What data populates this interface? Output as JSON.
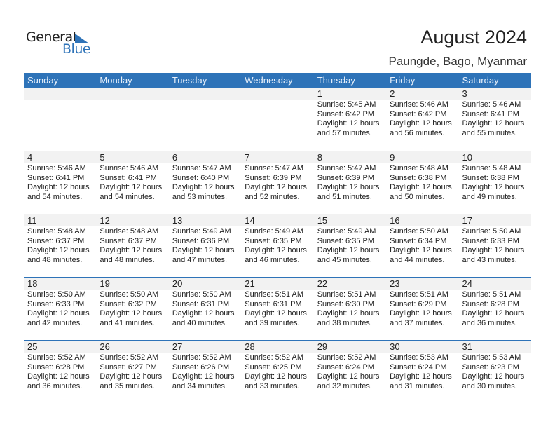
{
  "logo": {
    "word1": "General",
    "word2": "Blue"
  },
  "header": {
    "title": "August 2024",
    "location": "Paungde, Bago, Myanmar"
  },
  "weekdays": [
    "Sunday",
    "Monday",
    "Tuesday",
    "Wednesday",
    "Thursday",
    "Friday",
    "Saturday"
  ],
  "colors": {
    "accent": "#2e73b8",
    "band": "#f2f2f2"
  },
  "weeks": [
    [
      null,
      null,
      null,
      null,
      {
        "day": "1",
        "sunrise": "Sunrise: 5:45 AM",
        "sunset": "Sunset: 6:42 PM",
        "daylight1": "Daylight: 12 hours",
        "daylight2": "and 57 minutes."
      },
      {
        "day": "2",
        "sunrise": "Sunrise: 5:46 AM",
        "sunset": "Sunset: 6:42 PM",
        "daylight1": "Daylight: 12 hours",
        "daylight2": "and 56 minutes."
      },
      {
        "day": "3",
        "sunrise": "Sunrise: 5:46 AM",
        "sunset": "Sunset: 6:41 PM",
        "daylight1": "Daylight: 12 hours",
        "daylight2": "and 55 minutes."
      }
    ],
    [
      {
        "day": "4",
        "sunrise": "Sunrise: 5:46 AM",
        "sunset": "Sunset: 6:41 PM",
        "daylight1": "Daylight: 12 hours",
        "daylight2": "and 54 minutes."
      },
      {
        "day": "5",
        "sunrise": "Sunrise: 5:46 AM",
        "sunset": "Sunset: 6:41 PM",
        "daylight1": "Daylight: 12 hours",
        "daylight2": "and 54 minutes."
      },
      {
        "day": "6",
        "sunrise": "Sunrise: 5:47 AM",
        "sunset": "Sunset: 6:40 PM",
        "daylight1": "Daylight: 12 hours",
        "daylight2": "and 53 minutes."
      },
      {
        "day": "7",
        "sunrise": "Sunrise: 5:47 AM",
        "sunset": "Sunset: 6:39 PM",
        "daylight1": "Daylight: 12 hours",
        "daylight2": "and 52 minutes."
      },
      {
        "day": "8",
        "sunrise": "Sunrise: 5:47 AM",
        "sunset": "Sunset: 6:39 PM",
        "daylight1": "Daylight: 12 hours",
        "daylight2": "and 51 minutes."
      },
      {
        "day": "9",
        "sunrise": "Sunrise: 5:48 AM",
        "sunset": "Sunset: 6:38 PM",
        "daylight1": "Daylight: 12 hours",
        "daylight2": "and 50 minutes."
      },
      {
        "day": "10",
        "sunrise": "Sunrise: 5:48 AM",
        "sunset": "Sunset: 6:38 PM",
        "daylight1": "Daylight: 12 hours",
        "daylight2": "and 49 minutes."
      }
    ],
    [
      {
        "day": "11",
        "sunrise": "Sunrise: 5:48 AM",
        "sunset": "Sunset: 6:37 PM",
        "daylight1": "Daylight: 12 hours",
        "daylight2": "and 48 minutes."
      },
      {
        "day": "12",
        "sunrise": "Sunrise: 5:48 AM",
        "sunset": "Sunset: 6:37 PM",
        "daylight1": "Daylight: 12 hours",
        "daylight2": "and 48 minutes."
      },
      {
        "day": "13",
        "sunrise": "Sunrise: 5:49 AM",
        "sunset": "Sunset: 6:36 PM",
        "daylight1": "Daylight: 12 hours",
        "daylight2": "and 47 minutes."
      },
      {
        "day": "14",
        "sunrise": "Sunrise: 5:49 AM",
        "sunset": "Sunset: 6:35 PM",
        "daylight1": "Daylight: 12 hours",
        "daylight2": "and 46 minutes."
      },
      {
        "day": "15",
        "sunrise": "Sunrise: 5:49 AM",
        "sunset": "Sunset: 6:35 PM",
        "daylight1": "Daylight: 12 hours",
        "daylight2": "and 45 minutes."
      },
      {
        "day": "16",
        "sunrise": "Sunrise: 5:50 AM",
        "sunset": "Sunset: 6:34 PM",
        "daylight1": "Daylight: 12 hours",
        "daylight2": "and 44 minutes."
      },
      {
        "day": "17",
        "sunrise": "Sunrise: 5:50 AM",
        "sunset": "Sunset: 6:33 PM",
        "daylight1": "Daylight: 12 hours",
        "daylight2": "and 43 minutes."
      }
    ],
    [
      {
        "day": "18",
        "sunrise": "Sunrise: 5:50 AM",
        "sunset": "Sunset: 6:33 PM",
        "daylight1": "Daylight: 12 hours",
        "daylight2": "and 42 minutes."
      },
      {
        "day": "19",
        "sunrise": "Sunrise: 5:50 AM",
        "sunset": "Sunset: 6:32 PM",
        "daylight1": "Daylight: 12 hours",
        "daylight2": "and 41 minutes."
      },
      {
        "day": "20",
        "sunrise": "Sunrise: 5:50 AM",
        "sunset": "Sunset: 6:31 PM",
        "daylight1": "Daylight: 12 hours",
        "daylight2": "and 40 minutes."
      },
      {
        "day": "21",
        "sunrise": "Sunrise: 5:51 AM",
        "sunset": "Sunset: 6:31 PM",
        "daylight1": "Daylight: 12 hours",
        "daylight2": "and 39 minutes."
      },
      {
        "day": "22",
        "sunrise": "Sunrise: 5:51 AM",
        "sunset": "Sunset: 6:30 PM",
        "daylight1": "Daylight: 12 hours",
        "daylight2": "and 38 minutes."
      },
      {
        "day": "23",
        "sunrise": "Sunrise: 5:51 AM",
        "sunset": "Sunset: 6:29 PM",
        "daylight1": "Daylight: 12 hours",
        "daylight2": "and 37 minutes."
      },
      {
        "day": "24",
        "sunrise": "Sunrise: 5:51 AM",
        "sunset": "Sunset: 6:28 PM",
        "daylight1": "Daylight: 12 hours",
        "daylight2": "and 36 minutes."
      }
    ],
    [
      {
        "day": "25",
        "sunrise": "Sunrise: 5:52 AM",
        "sunset": "Sunset: 6:28 PM",
        "daylight1": "Daylight: 12 hours",
        "daylight2": "and 36 minutes."
      },
      {
        "day": "26",
        "sunrise": "Sunrise: 5:52 AM",
        "sunset": "Sunset: 6:27 PM",
        "daylight1": "Daylight: 12 hours",
        "daylight2": "and 35 minutes."
      },
      {
        "day": "27",
        "sunrise": "Sunrise: 5:52 AM",
        "sunset": "Sunset: 6:26 PM",
        "daylight1": "Daylight: 12 hours",
        "daylight2": "and 34 minutes."
      },
      {
        "day": "28",
        "sunrise": "Sunrise: 5:52 AM",
        "sunset": "Sunset: 6:25 PM",
        "daylight1": "Daylight: 12 hours",
        "daylight2": "and 33 minutes."
      },
      {
        "day": "29",
        "sunrise": "Sunrise: 5:52 AM",
        "sunset": "Sunset: 6:24 PM",
        "daylight1": "Daylight: 12 hours",
        "daylight2": "and 32 minutes."
      },
      {
        "day": "30",
        "sunrise": "Sunrise: 5:53 AM",
        "sunset": "Sunset: 6:24 PM",
        "daylight1": "Daylight: 12 hours",
        "daylight2": "and 31 minutes."
      },
      {
        "day": "31",
        "sunrise": "Sunrise: 5:53 AM",
        "sunset": "Sunset: 6:23 PM",
        "daylight1": "Daylight: 12 hours",
        "daylight2": "and 30 minutes."
      }
    ]
  ]
}
